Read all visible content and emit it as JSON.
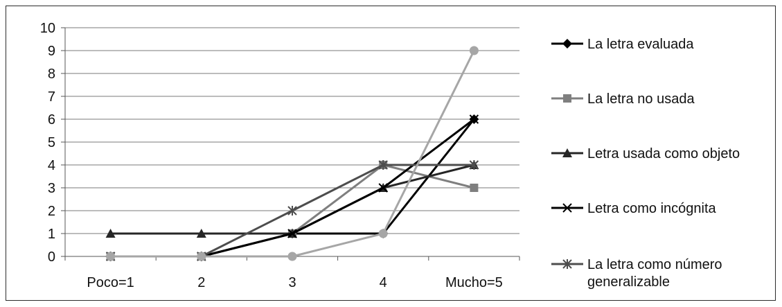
{
  "chart_data": {
    "type": "line",
    "categories": [
      "Poco=1",
      "2",
      "3",
      "4",
      "Mucho=5"
    ],
    "ylim": [
      0,
      10
    ],
    "yticks": [
      0,
      1,
      2,
      3,
      4,
      5,
      6,
      7,
      8,
      9,
      10
    ],
    "grid": true,
    "legend_position": "right",
    "series": [
      {
        "name": "La letra evaluada",
        "color": "#000000",
        "marker": "diamond",
        "values": [
          0,
          0,
          1,
          1,
          6
        ]
      },
      {
        "name": "La letra no usada",
        "color": "#7f7f7f",
        "marker": "square",
        "values": [
          0,
          0,
          1,
          4,
          3
        ]
      },
      {
        "name": "Letra usada como objeto",
        "color": "#262626",
        "marker": "triangle",
        "values": [
          1,
          1,
          1,
          3,
          4
        ]
      },
      {
        "name": "Letra como incógnita",
        "color": "#000000",
        "marker": "x",
        "values": [
          0,
          0,
          1,
          3,
          6
        ]
      },
      {
        "name": "La letra como número generalizable",
        "name_lines": [
          "La letra como número",
          "generalizable"
        ],
        "color": "#4d4d4d",
        "marker": "star",
        "values": [
          0,
          0,
          2,
          4,
          4
        ]
      },
      {
        "name": "",
        "color": "#a6a6a6",
        "marker": "circle",
        "values": [
          0,
          0,
          0,
          1,
          9
        ]
      }
    ]
  }
}
